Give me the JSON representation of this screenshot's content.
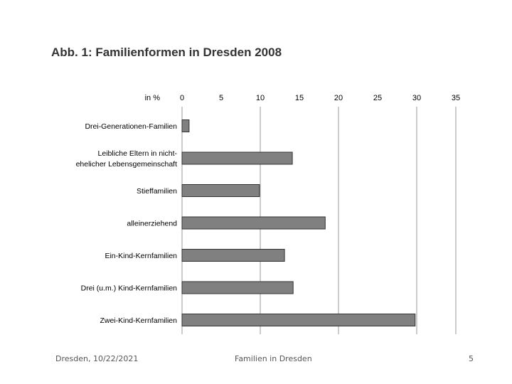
{
  "slide": {
    "title": "Abb. 1: Familienformen in Dresden 2008"
  },
  "footer": {
    "date": "Dresden, 10/22/2021",
    "center": "Familien in Dresden",
    "page": "5"
  },
  "chart_data": {
    "type": "bar",
    "orientation": "horizontal",
    "unit_label": "in %",
    "categories": [
      [
        "Drei-Generationen-Familien"
      ],
      [
        "Leibliche Eltern in nicht-",
        "ehelicher Lebensgemeinschaft"
      ],
      [
        "Stieffamilien"
      ],
      [
        "alleinerziehend"
      ],
      [
        "Ein-Kind-Kernfamilien"
      ],
      [
        "Drei (u.m.) Kind-Kernfamilien"
      ],
      [
        "Zwei-Kind-Kernfamilien"
      ]
    ],
    "values": [
      0.9,
      14.1,
      9.9,
      18.3,
      13.1,
      14.2,
      29.8
    ],
    "xlim": [
      0,
      35
    ],
    "ticks": [
      "0",
      "5",
      "10",
      "15",
      "20",
      "25",
      "30",
      "35"
    ],
    "axis_position": "top",
    "gridlines": "vertical at 0, 10, 20, 30, 35",
    "colors": {
      "bar": "#808080",
      "bar_border": "#333333",
      "grid": "#9a9a9a",
      "text": "#000000"
    }
  }
}
